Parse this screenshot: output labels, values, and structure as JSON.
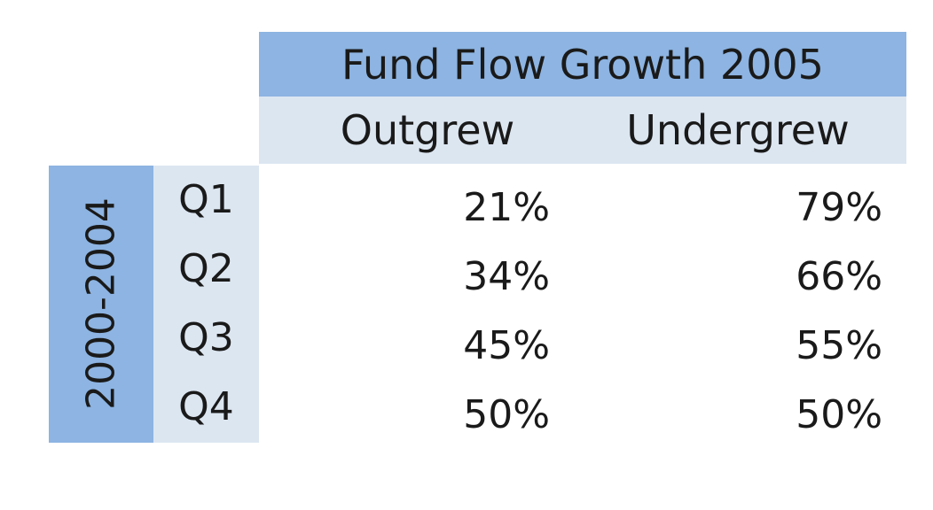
{
  "chart_data": {
    "type": "table",
    "title": "Fund Flow Growth 2005",
    "columns": [
      "Outgrew",
      "Undergrew"
    ],
    "row_group_label": "2000-2004",
    "rows": [
      {
        "label": "Q1",
        "values": [
          "21%",
          "79%"
        ]
      },
      {
        "label": "Q2",
        "values": [
          "34%",
          "66%"
        ]
      },
      {
        "label": "Q3",
        "values": [
          "45%",
          "55%"
        ]
      },
      {
        "label": "Q4",
        "values": [
          "50%",
          "50%"
        ]
      }
    ],
    "colors": {
      "header_dark": "#8db4e2",
      "header_light": "#dce6f1"
    }
  }
}
